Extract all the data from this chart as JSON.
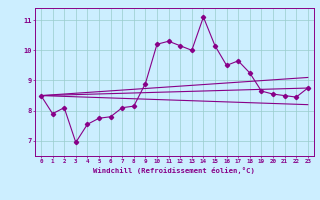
{
  "xlabel": "Windchill (Refroidissement éolien,°C)",
  "ylabel": "",
  "background_color": "#cceeff",
  "line_color": "#880088",
  "xlim": [
    -0.5,
    23.5
  ],
  "ylim": [
    6.5,
    11.4
  ],
  "xticks": [
    0,
    1,
    2,
    3,
    4,
    5,
    6,
    7,
    8,
    9,
    10,
    11,
    12,
    13,
    14,
    15,
    16,
    17,
    18,
    19,
    20,
    21,
    22,
    23
  ],
  "yticks": [
    7,
    8,
    9,
    10,
    11
  ],
  "grid_color": "#99cccc",
  "line1_x": [
    0,
    1,
    2,
    3,
    4,
    5,
    6,
    7,
    8,
    9,
    10,
    11,
    12,
    13,
    14,
    15,
    16,
    17,
    18,
    19,
    20,
    21,
    22,
    23
  ],
  "line1_y": [
    8.5,
    7.9,
    8.1,
    6.95,
    7.55,
    7.75,
    7.8,
    8.1,
    8.15,
    8.9,
    10.2,
    10.3,
    10.15,
    10.0,
    11.1,
    10.15,
    9.5,
    9.65,
    9.25,
    8.65,
    8.55,
    8.5,
    8.45,
    8.75
  ],
  "line2_x": [
    0,
    23
  ],
  "line2_y": [
    8.5,
    8.75
  ],
  "line3_x": [
    0,
    23
  ],
  "line3_y": [
    8.5,
    9.1
  ],
  "line4_x": [
    0,
    23
  ],
  "line4_y": [
    8.5,
    8.2
  ]
}
